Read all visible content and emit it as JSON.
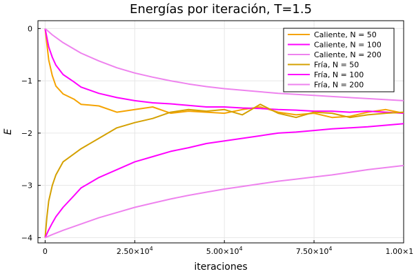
{
  "chart_data": {
    "type": "line",
    "title": "Energías por iteración, T=1.5",
    "xlabel": "iteraciones",
    "ylabel": "E",
    "xlim": [
      -2000,
      100000
    ],
    "ylim": [
      -4.1,
      0.15
    ],
    "x_ticks": [
      0,
      25000,
      50000,
      75000,
      100000
    ],
    "x_tick_labels": [
      {
        "mantissa": "0",
        "exp": ""
      },
      {
        "mantissa": "2.50×10",
        "exp": "4"
      },
      {
        "mantissa": "5.00×10",
        "exp": "4"
      },
      {
        "mantissa": "7.50×10",
        "exp": "4"
      },
      {
        "mantissa": "1.00×10",
        "exp": "5"
      }
    ],
    "y_ticks": [
      0,
      -1,
      -2,
      -3,
      -4
    ],
    "y_tick_labels": [
      "0",
      "−1",
      "−2",
      "−3",
      "−4"
    ],
    "grid": true,
    "legend_position": "top-right",
    "series": [
      {
        "name": "Caliente, N = 50",
        "color": "#f5a300",
        "x": [
          0,
          1000,
          2000,
          3000,
          5000,
          8000,
          10000,
          15000,
          20000,
          25000,
          30000,
          35000,
          40000,
          45000,
          50000,
          55000,
          60000,
          65000,
          70000,
          75000,
          80000,
          85000,
          90000,
          95000,
          100000
        ],
        "values": [
          0,
          -0.6,
          -0.9,
          -1.1,
          -1.25,
          -1.35,
          -1.45,
          -1.48,
          -1.6,
          -1.55,
          -1.5,
          -1.62,
          -1.58,
          -1.6,
          -1.62,
          -1.55,
          -1.5,
          -1.6,
          -1.65,
          -1.62,
          -1.7,
          -1.68,
          -1.6,
          -1.55,
          -1.62
        ]
      },
      {
        "name": "Caliente, N = 100",
        "color": "#ff00ff",
        "x": [
          0,
          1000,
          2000,
          3000,
          5000,
          8000,
          10000,
          15000,
          20000,
          25000,
          30000,
          35000,
          40000,
          45000,
          50000,
          55000,
          60000,
          65000,
          70000,
          75000,
          80000,
          85000,
          90000,
          95000,
          100000
        ],
        "values": [
          0,
          -0.35,
          -0.55,
          -0.7,
          -0.88,
          -1.02,
          -1.12,
          -1.24,
          -1.32,
          -1.38,
          -1.42,
          -1.44,
          -1.47,
          -1.5,
          -1.5,
          -1.52,
          -1.53,
          -1.55,
          -1.56,
          -1.58,
          -1.58,
          -1.6,
          -1.58,
          -1.6,
          -1.62
        ]
      },
      {
        "name": "Caliente, N = 200",
        "color": "#ee82ee",
        "x": [
          0,
          2000,
          5000,
          10000,
          15000,
          20000,
          25000,
          30000,
          35000,
          40000,
          45000,
          50000,
          55000,
          60000,
          65000,
          70000,
          75000,
          80000,
          85000,
          90000,
          95000,
          100000
        ],
        "values": [
          0,
          -0.12,
          -0.27,
          -0.47,
          -0.62,
          -0.75,
          -0.85,
          -0.93,
          -1.0,
          -1.06,
          -1.11,
          -1.15,
          -1.18,
          -1.21,
          -1.24,
          -1.26,
          -1.28,
          -1.3,
          -1.32,
          -1.34,
          -1.36,
          -1.38
        ]
      },
      {
        "name": "Fría, N = 50",
        "color": "#d4a000",
        "x": [
          0,
          500,
          1000,
          2000,
          3000,
          5000,
          8000,
          10000,
          15000,
          20000,
          25000,
          30000,
          35000,
          40000,
          45000,
          50000,
          55000,
          60000,
          65000,
          70000,
          75000,
          80000,
          85000,
          90000,
          95000,
          100000
        ],
        "values": [
          -4.0,
          -3.6,
          -3.3,
          -3.0,
          -2.8,
          -2.55,
          -2.4,
          -2.3,
          -2.1,
          -1.9,
          -1.8,
          -1.72,
          -1.6,
          -1.55,
          -1.58,
          -1.55,
          -1.65,
          -1.45,
          -1.62,
          -1.7,
          -1.6,
          -1.62,
          -1.7,
          -1.65,
          -1.62,
          -1.6
        ]
      },
      {
        "name": "Fría, N = 100",
        "color": "#ff00ff",
        "x": [
          0,
          1000,
          2000,
          3000,
          5000,
          8000,
          10000,
          15000,
          20000,
          25000,
          30000,
          35000,
          40000,
          45000,
          50000,
          55000,
          60000,
          65000,
          70000,
          75000,
          80000,
          85000,
          90000,
          95000,
          100000
        ],
        "values": [
          -4.0,
          -3.85,
          -3.72,
          -3.6,
          -3.42,
          -3.2,
          -3.05,
          -2.85,
          -2.7,
          -2.55,
          -2.45,
          -2.35,
          -2.28,
          -2.2,
          -2.15,
          -2.1,
          -2.05,
          -2.0,
          -1.98,
          -1.95,
          -1.92,
          -1.9,
          -1.88,
          -1.85,
          -1.82
        ]
      },
      {
        "name": "Fría, N = 200",
        "color": "#ee82ee",
        "x": [
          0,
          2000,
          5000,
          10000,
          15000,
          20000,
          25000,
          30000,
          35000,
          40000,
          45000,
          50000,
          55000,
          60000,
          65000,
          70000,
          75000,
          80000,
          85000,
          90000,
          95000,
          100000
        ],
        "values": [
          -4.0,
          -3.94,
          -3.86,
          -3.74,
          -3.62,
          -3.52,
          -3.42,
          -3.34,
          -3.26,
          -3.19,
          -3.13,
          -3.07,
          -3.02,
          -2.97,
          -2.92,
          -2.88,
          -2.84,
          -2.8,
          -2.75,
          -2.7,
          -2.66,
          -2.62
        ]
      }
    ]
  }
}
